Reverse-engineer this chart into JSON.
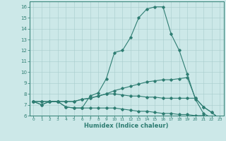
{
  "xlabel": "Humidex (Indice chaleur)",
  "bg_color": "#cce8e8",
  "line_color": "#2e7d72",
  "xlim": [
    -0.5,
    23.5
  ],
  "ylim": [
    6,
    16.5
  ],
  "yticks": [
    6,
    7,
    8,
    9,
    10,
    11,
    12,
    13,
    14,
    15,
    16
  ],
  "xticks": [
    0,
    1,
    2,
    3,
    4,
    5,
    6,
    7,
    8,
    9,
    10,
    11,
    12,
    13,
    14,
    15,
    16,
    17,
    18,
    19,
    20,
    21,
    22,
    23
  ],
  "series": [
    [
      7.3,
      7.0,
      7.3,
      7.3,
      6.8,
      6.7,
      6.7,
      7.8,
      8.1,
      9.4,
      11.8,
      12.0,
      13.2,
      15.0,
      15.8,
      16.0,
      16.0,
      13.5,
      12.0,
      9.8,
      7.5,
      6.2,
      5.8,
      5.7
    ],
    [
      7.3,
      7.0,
      7.3,
      7.3,
      6.8,
      6.7,
      6.7,
      6.7,
      6.7,
      6.7,
      6.7,
      6.6,
      6.5,
      6.4,
      6.4,
      6.3,
      6.2,
      6.2,
      6.1,
      6.1,
      6.0,
      6.0,
      5.8,
      5.7
    ],
    [
      7.3,
      7.3,
      7.3,
      7.3,
      7.3,
      7.3,
      7.5,
      7.6,
      7.8,
      8.0,
      8.3,
      8.5,
      8.7,
      8.9,
      9.1,
      9.2,
      9.3,
      9.3,
      9.4,
      9.5,
      7.6,
      6.8,
      6.3,
      5.7
    ],
    [
      7.3,
      7.3,
      7.3,
      7.3,
      7.3,
      7.3,
      7.5,
      7.6,
      7.8,
      8.0,
      8.0,
      7.9,
      7.8,
      7.8,
      7.7,
      7.7,
      7.6,
      7.6,
      7.6,
      7.6,
      7.6,
      6.8,
      6.3,
      5.7
    ]
  ],
  "figsize": [
    3.2,
    2.0
  ],
  "dpi": 100
}
